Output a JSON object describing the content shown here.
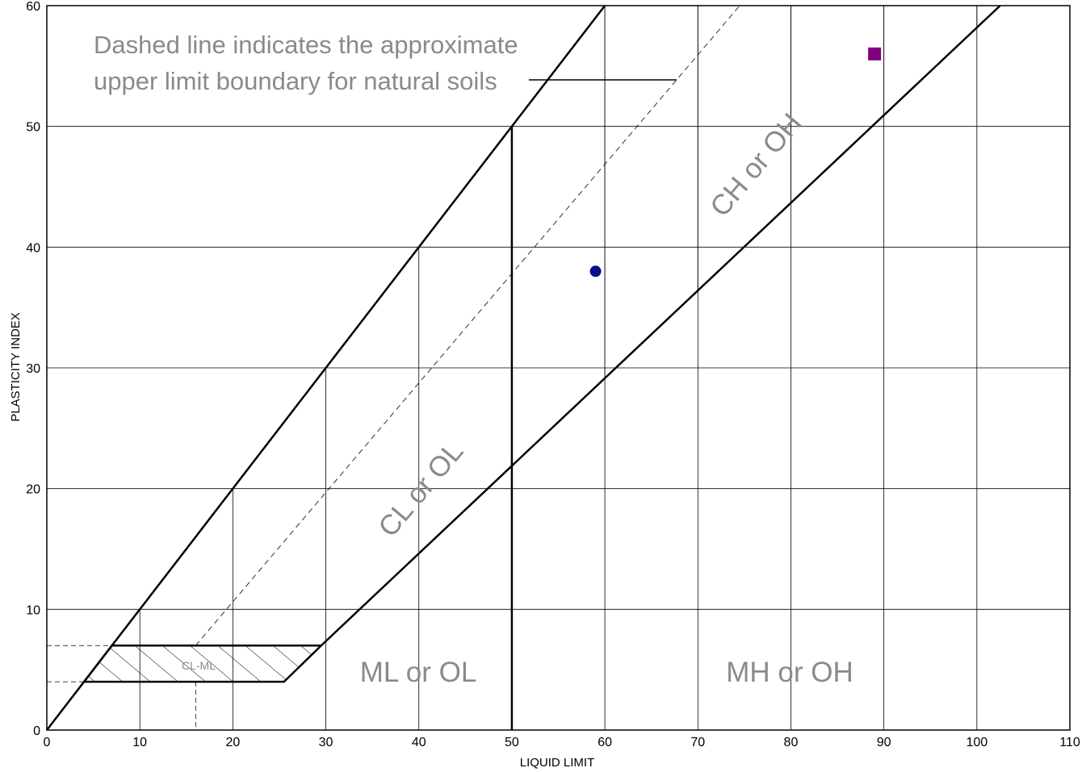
{
  "chart_data": {
    "type": "scatter",
    "title": "",
    "xlabel": "LIQUID LIMIT",
    "ylabel": "PLASTICITY INDEX",
    "xlim": [
      0,
      110
    ],
    "ylim": [
      0,
      60
    ],
    "x_ticks": [
      0,
      10,
      20,
      30,
      40,
      50,
      60,
      70,
      80,
      90,
      100,
      110
    ],
    "y_ticks": [
      0,
      10,
      20,
      30,
      40,
      50,
      60
    ],
    "grid": true,
    "reference_lines": [
      {
        "name": "U-line",
        "style": "solid",
        "points": [
          [
            7,
            7
          ],
          [
            60,
            60
          ]
        ]
      },
      {
        "name": "A-line",
        "style": "solid",
        "points": [
          [
            29.5,
            7
          ],
          [
            102.5,
            60
          ]
        ]
      },
      {
        "name": "upper limit for natural soils",
        "style": "dashed",
        "points": [
          [
            16,
            7
          ],
          [
            74.5,
            60
          ]
        ]
      },
      {
        "name": "LL 50 divider",
        "style": "solid",
        "points": [
          [
            50,
            0
          ],
          [
            50,
            50
          ]
        ]
      }
    ],
    "cl_ml_band": [
      [
        4,
        4
      ],
      [
        25.5,
        4
      ],
      [
        29.5,
        7
      ],
      [
        7,
        7
      ]
    ],
    "annotations": {
      "dashed_line_note_line1": "Dashed line indicates the approximate",
      "dashed_line_note_line2": "upper limit boundary for natural soils",
      "zone_cl_ol": "CL or OL",
      "zone_ch_oh": "CH or OH",
      "zone_ml_ol": "ML or OL",
      "zone_mh_oh": "MH or OH",
      "zone_cl_ml": "CL-ML"
    },
    "series": [
      {
        "marker": "circle",
        "color": "#0a0f8a",
        "points": [
          [
            59,
            38
          ]
        ]
      },
      {
        "marker": "square",
        "color": "#800080",
        "points": [
          [
            89,
            56
          ]
        ]
      }
    ]
  }
}
